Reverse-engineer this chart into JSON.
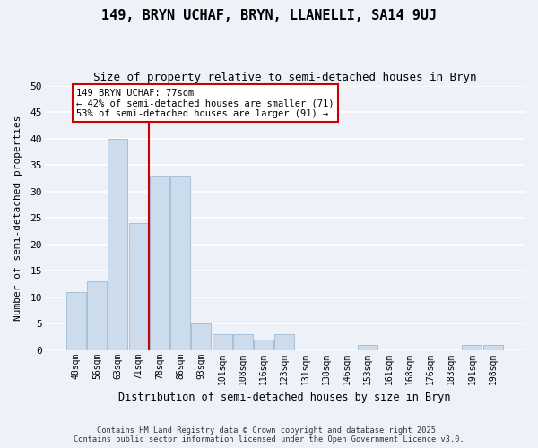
{
  "title": "149, BRYN UCHAF, BRYN, LLANELLI, SA14 9UJ",
  "subtitle": "Size of property relative to semi-detached houses in Bryn",
  "xlabel": "Distribution of semi-detached houses by size in Bryn",
  "ylabel": "Number of semi-detached properties",
  "bar_color": "#ccdcec",
  "bar_edgecolor": "#a8c0d8",
  "background_color": "#eef2f8",
  "grid_color": "#ffffff",
  "categories": [
    "48sqm",
    "56sqm",
    "63sqm",
    "71sqm",
    "78sqm",
    "86sqm",
    "93sqm",
    "101sqm",
    "108sqm",
    "116sqm",
    "123sqm",
    "131sqm",
    "138sqm",
    "146sqm",
    "153sqm",
    "161sqm",
    "168sqm",
    "176sqm",
    "183sqm",
    "191sqm",
    "198sqm"
  ],
  "values": [
    11,
    13,
    40,
    24,
    33,
    33,
    5,
    3,
    3,
    2,
    3,
    0,
    0,
    0,
    1,
    0,
    0,
    0,
    0,
    1,
    1
  ],
  "ylim": [
    0,
    50
  ],
  "yticks": [
    0,
    5,
    10,
    15,
    20,
    25,
    30,
    35,
    40,
    45,
    50
  ],
  "property_line_index": 4,
  "property_line_color": "#cc0000",
  "annotation_title": "149 BRYN UCHAF: 77sqm",
  "annotation_line1": "← 42% of semi-detached houses are smaller (71)",
  "annotation_line2": "53% of semi-detached houses are larger (91) →",
  "annotation_box_facecolor": "#ffffff",
  "annotation_box_edgecolor": "#cc0000",
  "footer1": "Contains HM Land Registry data © Crown copyright and database right 2025.",
  "footer2": "Contains public sector information licensed under the Open Government Licence v3.0."
}
